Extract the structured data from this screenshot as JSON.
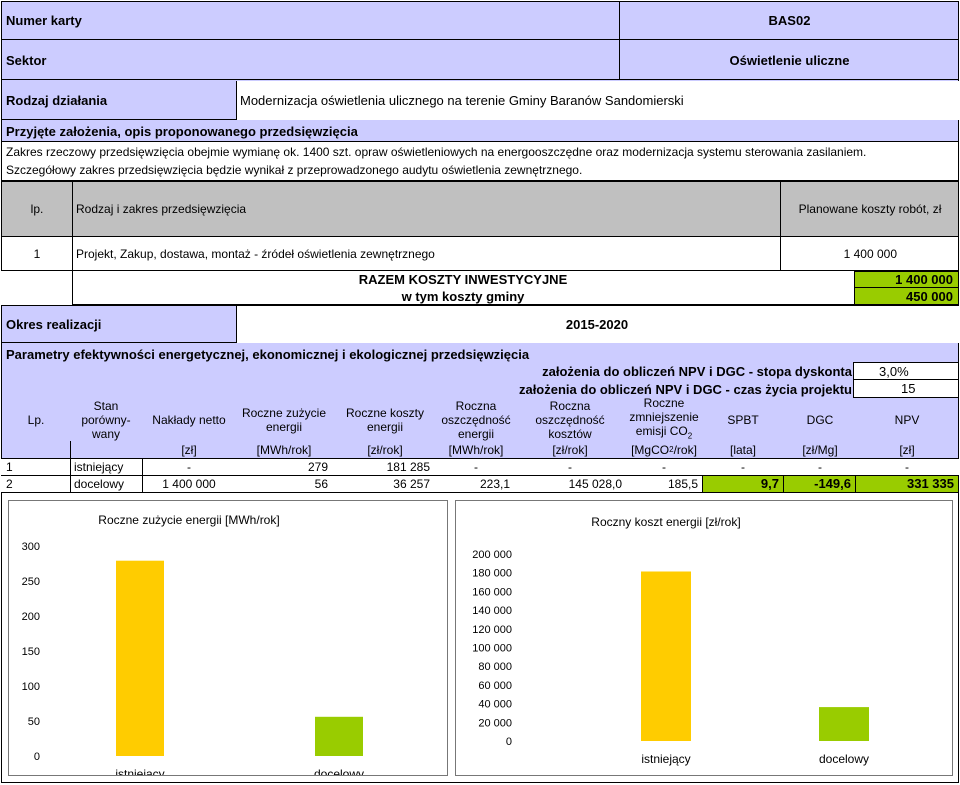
{
  "header": {
    "card_label": "Numer karty",
    "card_value": "BAS02",
    "sector_label": "Sektor",
    "sector_value": "Oświetlenie uliczne",
    "action_label": "Rodzaj działania",
    "action_value": "Modernizacja oświetlenia ulicznego na terenie Gminy Baranów Sandomierski"
  },
  "assumptions": {
    "title": "Przyjęte założenia, opis proponowanego przedsięwzięcia",
    "line1": "Zakres rzeczowy przedsięwzięcia obejmie wymianę ok. 1400 szt. opraw oświetleniowych na energooszczędne oraz modernizacja systemu sterowania zasilaniem.",
    "line2": "Szczegółowy zakres przedsięwzięcia będzie wynikał z przeprowadzonego audytu oświetlenia zewnętrznego."
  },
  "cost_table": {
    "col_lp": "lp.",
    "col_scope": "Rodzaj i zakres przedsięwzięcia",
    "col_cost": "Planowane koszty robót, zł",
    "rows": [
      {
        "lp": "1",
        "scope": "Projekt, Zakup, dostawa, montaż - źródeł oświetlenia zewnętrznego",
        "cost": "1 400 000"
      }
    ],
    "total_label": "RAZEM KOSZTY INWESTYCYJNE",
    "total_value": "1 400 000",
    "commune_label": "w tym koszty gminy",
    "commune_value": "450 000"
  },
  "period": {
    "label": "Okres realizacji",
    "value": "2015-2020"
  },
  "efficiency": {
    "title": "Parametry efektywności energetycznej, ekonomicznej i ekologicznej przedsięwzięcia",
    "discount_label": "założenia do obliczeń NPV i DGC - stopa dyskonta",
    "discount_value": "3,0%",
    "lifetime_label": "założenia do obliczeń NPV i DGC - czas życia projektu",
    "lifetime_value": "15",
    "headers": {
      "lp": "Lp.",
      "state_1": "Stan",
      "state_2": "porówny-",
      "state_3": "wany",
      "capex": "Nakłady netto",
      "energy_1": "Roczne zużycie",
      "energy_2": "energii",
      "cost_1": "Roczne koszty",
      "cost_2": "energii",
      "esave_1": "Roczna",
      "esave_2": "oszczędność",
      "esave_3": "energii",
      "csave_1": "Roczna",
      "csave_2": "oszczędność",
      "csave_3": "kosztów",
      "co2_1": "Roczne",
      "co2_2": "zmniejszenie",
      "co2_3": "emisji CO",
      "co2_sub": "2",
      "spbt": "SPBT",
      "dgc": "DGC",
      "npv": "NPV"
    },
    "units": {
      "capex": "[zł]",
      "energy": "[MWh/rok]",
      "cost": "[zł/rok]",
      "esave": "[MWh/rok]",
      "csave": "[zł/rok]",
      "co2_pre": "[MgCO",
      "co2_sub": "2",
      "co2_post": "/rok]",
      "spbt": "[lata]",
      "dgc": "[zł/Mg]",
      "npv": "[zł]"
    },
    "rows": [
      {
        "lp": "1",
        "state": "istniejący",
        "capex": "-",
        "energy": "279",
        "cost": "181 285",
        "esave": "-",
        "csave": "-",
        "co2": "-",
        "spbt": "-",
        "dgc": "-",
        "npv": "-"
      },
      {
        "lp": "2",
        "state": "docelowy",
        "capex": "1 400 000",
        "energy": "56",
        "cost": "36 257",
        "esave": "223,1",
        "csave": "145 028,0",
        "co2": "185,5",
        "spbt": "9,7",
        "dgc": "-149,6",
        "npv": "331 335"
      }
    ]
  },
  "colors": {
    "header_bg": "#ccccff",
    "table_head_bg": "#c0c0c0",
    "highlight_green": "#99cc00",
    "bar_existing": "#ffcc00",
    "bar_target": "#99cc00"
  },
  "chart_data": [
    {
      "type": "bar",
      "title": "Roczne zużycie energii [MWh/rok]",
      "categories": [
        "istniejący",
        "docelowy"
      ],
      "values": [
        279,
        56
      ],
      "ylim": [
        0,
        300
      ],
      "yticks": [
        0,
        50,
        100,
        150,
        200,
        250,
        300
      ],
      "ytick_labels": [
        "0",
        "50",
        "100",
        "150",
        "200",
        "250",
        "300"
      ],
      "grid": false,
      "legend": "none"
    },
    {
      "type": "bar",
      "title": "Roczny koszt energii [zł/rok]",
      "categories": [
        "istniejący",
        "docelowy"
      ],
      "values": [
        181285,
        36257
      ],
      "ylim": [
        0,
        200000
      ],
      "yticks": [
        0,
        20000,
        40000,
        60000,
        80000,
        100000,
        120000,
        140000,
        160000,
        180000,
        200000
      ],
      "ytick_labels": [
        "0",
        "20 000",
        "40 000",
        "60 000",
        "80 000",
        "100 000",
        "120 000",
        "140 000",
        "160 000",
        "180 000",
        "200 000"
      ],
      "grid": false,
      "legend": "none"
    }
  ]
}
